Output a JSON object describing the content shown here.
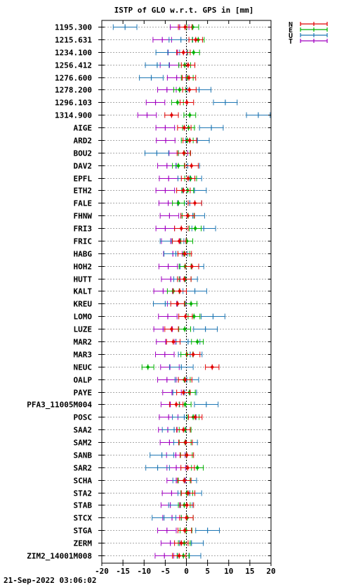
{
  "chart_data": {
    "type": "scatter",
    "title": "ISTP of GLO w.r.t. GPS in [mm]",
    "timestamp": "21-Sep-2022 03:06:02",
    "xlim": [
      -20,
      20
    ],
    "x_ticks": [
      "-20",
      "-15",
      "-10",
      "-5",
      "0",
      "5",
      "10",
      "15",
      "20"
    ],
    "grid": true,
    "legend_position": "top-right",
    "series": [
      {
        "name": "N",
        "color": "#e00000"
      },
      {
        "name": "E",
        "color": "#00b000"
      },
      {
        "name": "U",
        "color": "#1f77b4"
      },
      {
        "name": "T",
        "color": "#a000c0"
      }
    ],
    "categories": [
      "1195.300",
      "1215.631",
      "1234.100",
      "1256.412",
      "1276.600",
      "1278.200",
      "1296.103",
      "1314.900",
      "AIGE",
      "ARD2",
      "BOU2",
      "DAV2",
      "EPFL",
      "ETH2",
      "FALE",
      "FHNW",
      "FRI3",
      "FRIC",
      "HABG",
      "HOH2",
      "HUTT",
      "KALT",
      "KREU",
      "LOMO",
      "LUZE",
      "MAR2",
      "MAR3",
      "NEUC",
      "OALP",
      "PAYE",
      "PFA3_11005M004",
      "POSC",
      "SAA2",
      "SAM2",
      "SANB",
      "SAR2",
      "SCHA",
      "STA2",
      "STAB",
      "STCX",
      "STGA",
      "ZERM",
      "ZIM2_14001M008"
    ],
    "points": [
      {
        "N": -0.3,
        "E": 1.5,
        "U": -14.5,
        "T": -1.6
      },
      {
        "N": 2.2,
        "E": 2.8,
        "U": -1.3,
        "T": -5.7
      },
      {
        "N": -0.7,
        "E": 1.7,
        "U": -4.4,
        "T": -2.1
      },
      {
        "N": 0.4,
        "E": -0.4,
        "U": -6.9,
        "T": -4.0
      },
      {
        "N": 0.6,
        "E": 0.2,
        "U": -8.3,
        "T": -2.3
      },
      {
        "N": 0.7,
        "E": -1.6,
        "U": 3.0,
        "T": -4.6
      },
      {
        "N": 0.1,
        "E": -2.1,
        "U": 9.2,
        "T": -7.3
      },
      {
        "N": -3.5,
        "E": 0.8,
        "U": 17.0,
        "T": -9.3
      },
      {
        "N": -0.5,
        "E": 0.5,
        "U": 5.9,
        "T": -5.0
      },
      {
        "N": 0.8,
        "E": 0.2,
        "U": 2.6,
        "T": -4.9
      },
      {
        "N": -0.6,
        "E": -0.5,
        "U": -7.0,
        "T": -1.9
      },
      {
        "N": 1.2,
        "E": -1.9,
        "U": 0.3,
        "T": -4.6
      },
      {
        "N": 0.4,
        "E": 1.0,
        "U": 0.8,
        "T": -4.2
      },
      {
        "N": -0.7,
        "E": 0.3,
        "U": 1.9,
        "T": -5.0
      },
      {
        "N": 2.0,
        "E": -1.9,
        "U": 0.8,
        "T": -4.3
      },
      {
        "N": 0.3,
        "E": 0.4,
        "U": 1.5,
        "T": -4.0
      },
      {
        "N": -1.2,
        "E": 2.1,
        "U": 4.1,
        "T": -5.0
      },
      {
        "N": -1.7,
        "E": 0.1,
        "U": -3.4,
        "T": -3.7
      },
      {
        "N": -0.4,
        "E": -0.6,
        "U": -2.5,
        "T": -3.2
      },
      {
        "N": 1.3,
        "E": -0.3,
        "U": 1.3,
        "T": -4.3
      },
      {
        "N": -0.5,
        "E": -0.3,
        "U": -0.2,
        "T": -3.7
      },
      {
        "N": -1.6,
        "E": -3.1,
        "U": 2.0,
        "T": -5.5
      },
      {
        "N": -2.1,
        "E": 1.1,
        "U": -5.0,
        "T": -2.3
      },
      {
        "N": -0.2,
        "E": 1.8,
        "U": 6.3,
        "T": -4.4
      },
      {
        "N": -3.5,
        "E": -0.4,
        "U": 4.5,
        "T": -5.5
      },
      {
        "N": -3.1,
        "E": 2.6,
        "U": 0.4,
        "T": -4.9
      },
      {
        "N": 1.6,
        "E": 0.1,
        "U": 0.9,
        "T": -5.1
      },
      {
        "N": 6.1,
        "E": -9.1,
        "U": -1.2,
        "T": -3.9
      },
      {
        "N": -0.3,
        "E": -0.5,
        "U": 0.1,
        "T": -4.6
      },
      {
        "N": -0.7,
        "E": 0.7,
        "U": -0.4,
        "T": -3.4
      },
      {
        "N": -2.4,
        "E": -0.3,
        "U": 4.7,
        "T": -3.8
      },
      {
        "N": 2.1,
        "E": 1.6,
        "U": -0.5,
        "T": -4.2
      },
      {
        "N": -0.7,
        "E": -0.3,
        "U": -2.9,
        "T": -4.4
      },
      {
        "N": -0.2,
        "E": -0.3,
        "U": -0.2,
        "T": -4.0
      },
      {
        "N": 0.1,
        "E": 0.0,
        "U": -5.8,
        "T": -2.5
      },
      {
        "N": 0.3,
        "E": 2.6,
        "U": -6.8,
        "T": -2.4
      },
      {
        "N": -0.5,
        "E": -0.5,
        "U": -0.4,
        "T": -2.4
      },
      {
        "N": 0.4,
        "E": 0.1,
        "U": 0.8,
        "T": -3.5
      },
      {
        "N": 0.1,
        "E": -0.5,
        "U": -1.4,
        "T": -3.8
      },
      {
        "N": 0.0,
        "E": 0.2,
        "U": -5.3,
        "T": -3.4
      },
      {
        "N": -0.4,
        "E": -0.1,
        "U": 5.0,
        "T": -4.6
      },
      {
        "N": -1.2,
        "E": -0.5,
        "U": 1.2,
        "T": -3.8
      },
      {
        "N": -1.7,
        "E": -0.7,
        "U": 0.6,
        "T": -5.2
      }
    ]
  }
}
